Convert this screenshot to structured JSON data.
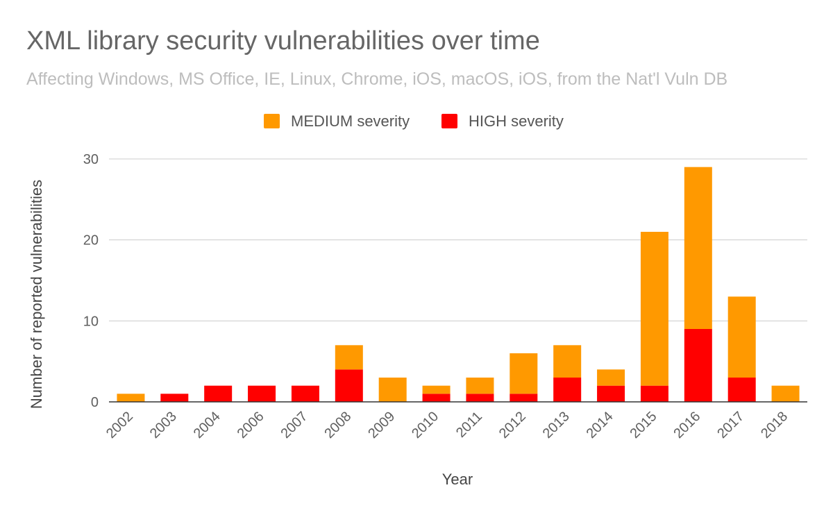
{
  "chart_data": {
    "type": "bar",
    "stacked": true,
    "title": "XML library security vulnerabilities over time",
    "subtitle": "Affecting Windows, MS Office, IE, Linux, Chrome, iOS, macOS, iOS, from the Nat'l Vuln DB",
    "xlabel": "Year",
    "ylabel": "Number of reported vulnerabilities",
    "ylim": [
      0,
      30
    ],
    "yticks": [
      "0",
      "10",
      "20",
      "30"
    ],
    "grid": true,
    "legend_position": "top",
    "categories": [
      "2002",
      "2003",
      "2004",
      "2006",
      "2007",
      "2008",
      "2009",
      "2010",
      "2011",
      "2012",
      "2013",
      "2014",
      "2015",
      "2016",
      "2017",
      "2018"
    ],
    "series": [
      {
        "name": "HIGH severity",
        "color": "#ff0000",
        "values": [
          0,
          1,
          2,
          2,
          2,
          4,
          0,
          1,
          1,
          1,
          3,
          2,
          2,
          9,
          3,
          0
        ]
      },
      {
        "name": "MEDIUM severity",
        "color": "#ff9900",
        "values": [
          1,
          0,
          0,
          0,
          0,
          3,
          3,
          1,
          2,
          5,
          4,
          2,
          19,
          20,
          10,
          2
        ]
      }
    ],
    "legend_order": [
      1,
      0
    ]
  }
}
